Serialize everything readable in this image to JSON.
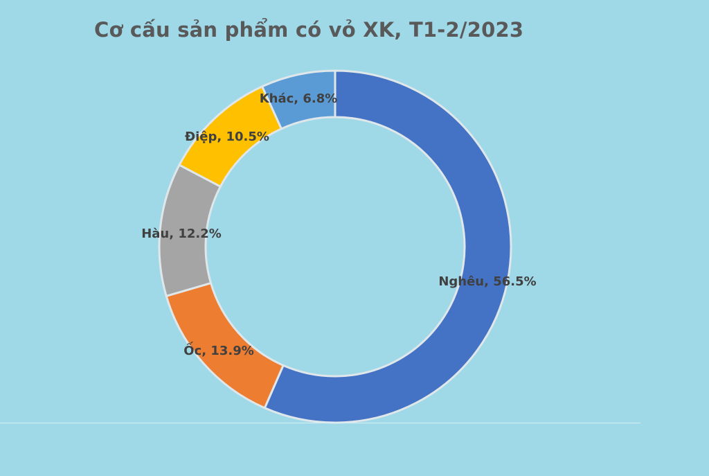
{
  "chart_data": {
    "type": "pie",
    "variant": "donut",
    "title": "Cơ cấu sản phẩm có vỏ XK, T1-2/2023",
    "slices": [
      {
        "label": "Nghêu",
        "value": 56.5,
        "display": "Nghêu, 56.5%",
        "color": "#4472c4"
      },
      {
        "label": "Ốc",
        "value": 13.9,
        "display": "Ốc, 13.9%",
        "color": "#ed7d31"
      },
      {
        "label": "Hàu",
        "value": 12.2,
        "display": "Hàu, 12.2%",
        "color": "#a5a5a5"
      },
      {
        "label": "Điệp",
        "value": 10.5,
        "display": "Điệp, 10.5%",
        "color": "#ffc000"
      },
      {
        "label": "Khác",
        "value": 6.8,
        "display": "Khác, 6.8%",
        "color": "#5b9bd5"
      }
    ],
    "legend": "none",
    "background": "#9fd9e8",
    "label_color": "#404040"
  }
}
